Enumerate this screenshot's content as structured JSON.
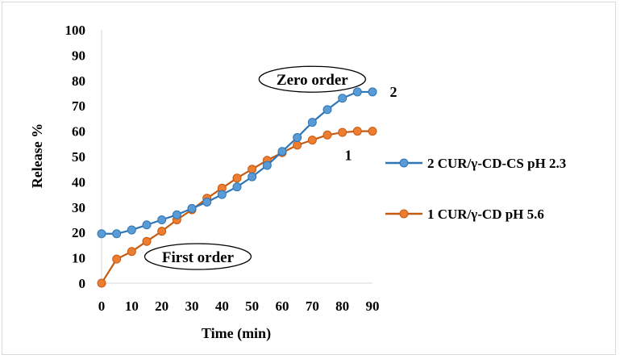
{
  "chart_data": {
    "type": "line",
    "xlabel": "Time  (min)",
    "ylabel": "Release %",
    "xlim": [
      0,
      90
    ],
    "ylim": [
      0,
      100
    ],
    "xticks": [
      0,
      10,
      20,
      30,
      40,
      50,
      60,
      70,
      80,
      90
    ],
    "yticks": [
      0,
      10,
      20,
      30,
      40,
      50,
      60,
      70,
      80,
      90,
      100
    ],
    "grid": false,
    "legend_position": "right",
    "x": [
      0,
      5,
      10,
      15,
      20,
      25,
      30,
      35,
      40,
      45,
      50,
      55,
      60,
      65,
      70,
      75,
      80,
      85,
      90
    ],
    "series": [
      {
        "name": "2 CUR/γ-CD-CS pH 2.3",
        "tag": "2",
        "color": "#2e75b6",
        "marker_color": "#5b9bd5",
        "values": [
          19.5,
          19.5,
          21,
          23,
          25,
          27,
          29.5,
          32,
          35,
          38,
          42,
          46.5,
          52,
          57.5,
          63.5,
          68.5,
          73,
          75.5,
          75.5
        ]
      },
      {
        "name": "1 CUR/γ-CD pH 5.6",
        "tag": "1",
        "color": "#c55a11",
        "marker_color": "#ed7d31",
        "values": [
          0,
          9.5,
          12.5,
          16.5,
          20.5,
          25,
          29,
          33.5,
          37.5,
          41.5,
          45,
          48.5,
          51.5,
          54.5,
          56.5,
          58.5,
          59.5,
          60,
          60
        ]
      }
    ],
    "annotations": [
      {
        "text": "Zero order",
        "x": 70,
        "y": 80.5
      },
      {
        "text": "First order",
        "x": 32,
        "y": 10.5
      }
    ]
  }
}
